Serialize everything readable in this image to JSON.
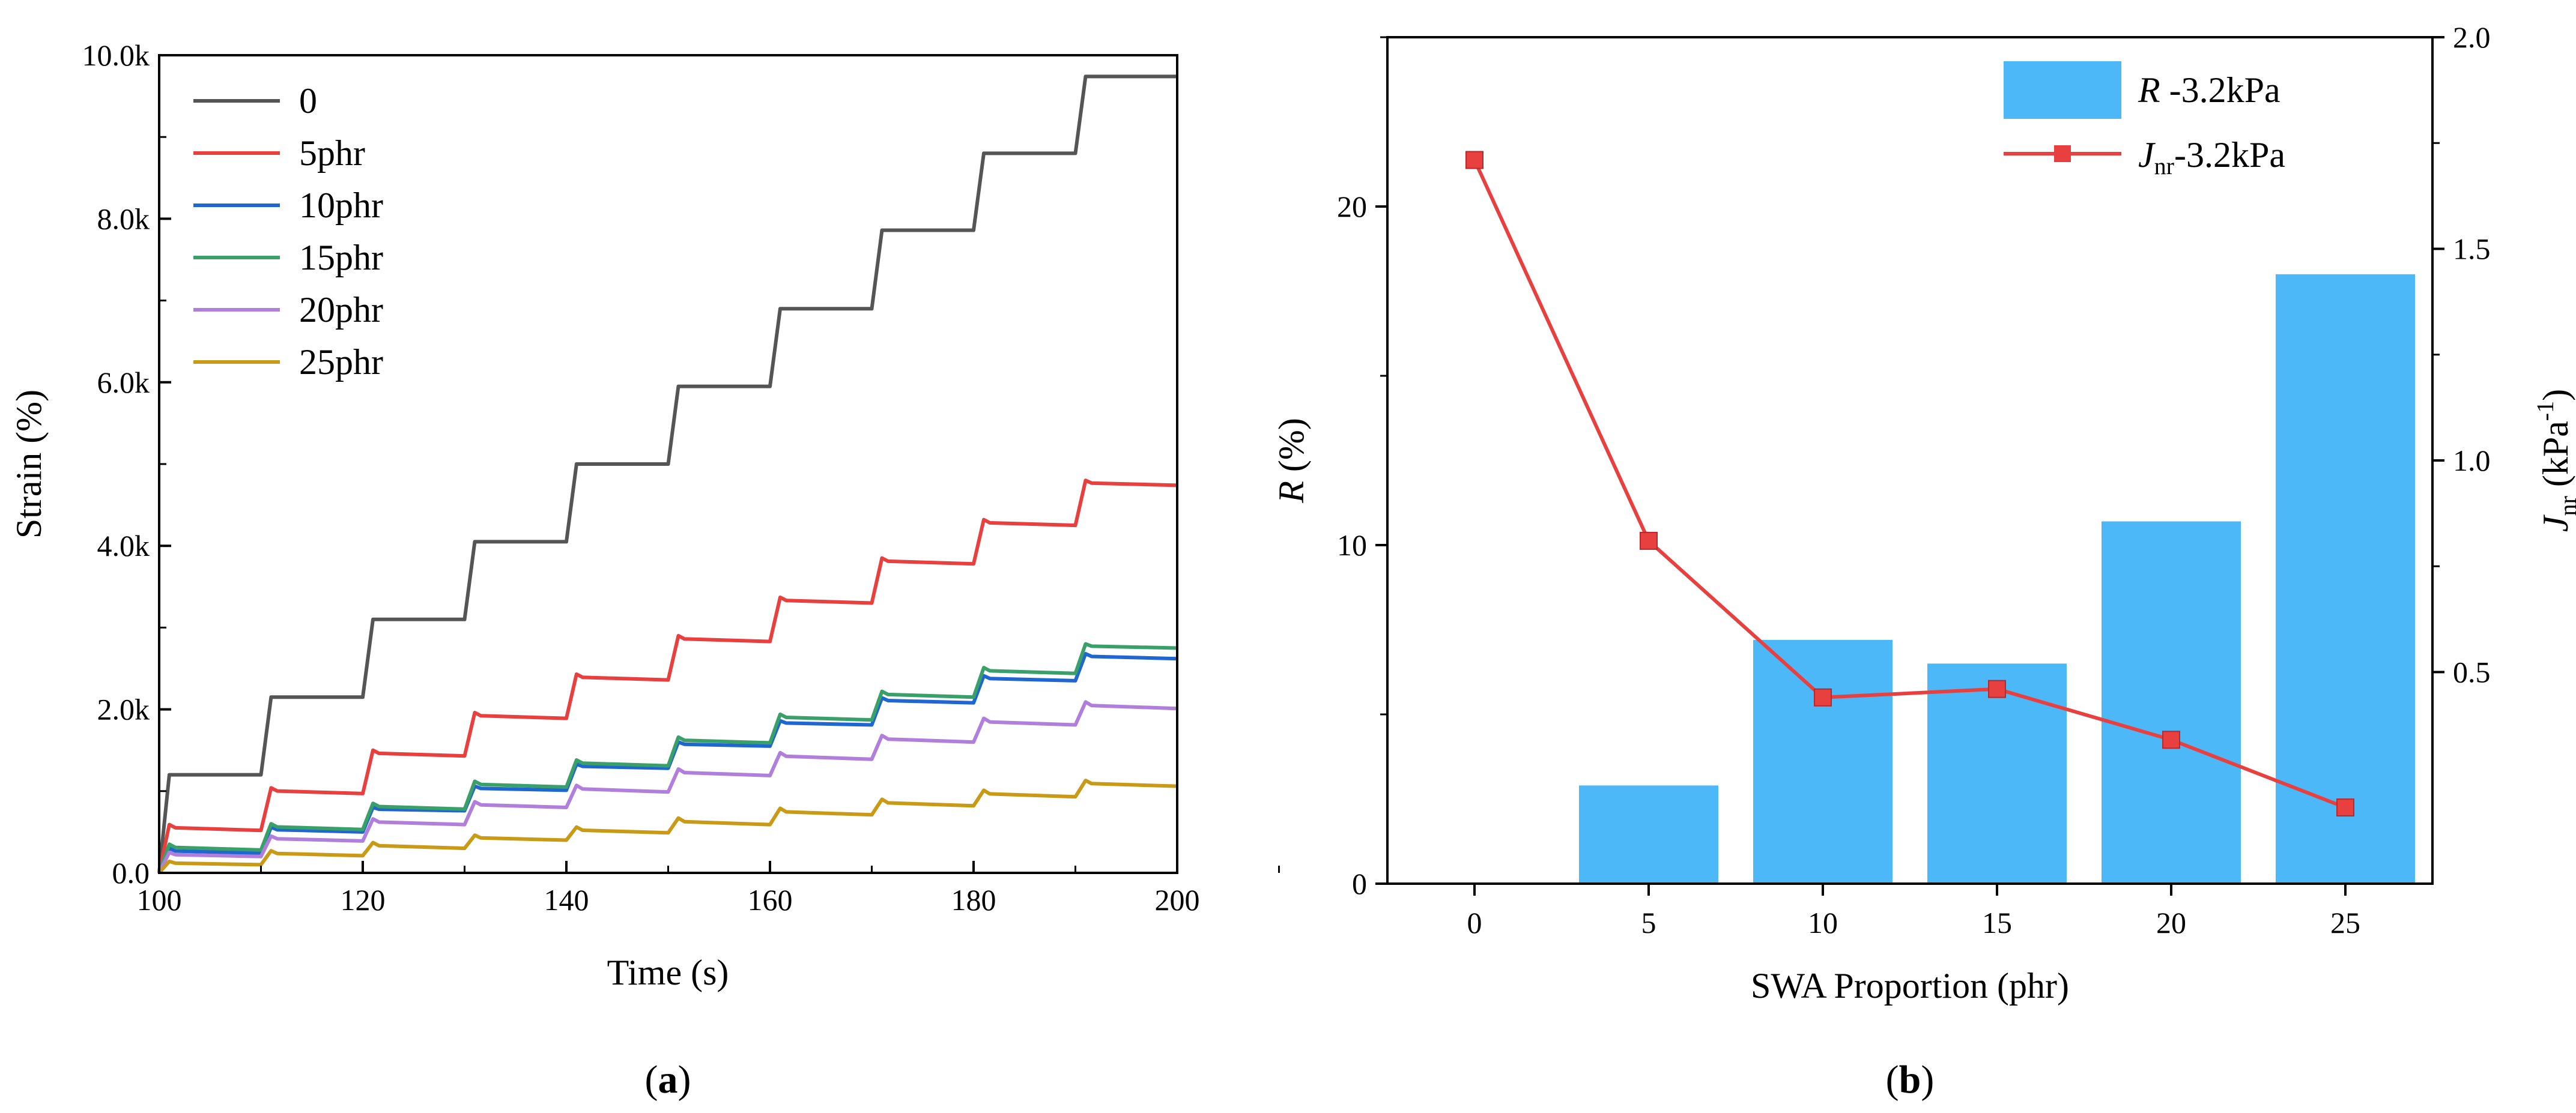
{
  "chart_data": [
    {
      "panel": "a",
      "type": "line",
      "caption": {
        "open": "(",
        "letter": "a",
        "close": ")"
      },
      "xlabel": "Time (s)",
      "ylabel": "Strain (%)",
      "xlim": [
        100,
        200
      ],
      "ylim": [
        0,
        10000
      ],
      "xticks": [
        100,
        120,
        140,
        160,
        180,
        200
      ],
      "yticks": [
        0,
        2000,
        4000,
        6000,
        8000,
        10000
      ],
      "ytick_labels": [
        "0.0",
        "2.0k",
        "4.0k",
        "6.0k",
        "8.0k",
        "10.0k"
      ],
      "legend_position": "top-left",
      "cycle": {
        "start": 100,
        "period": 10,
        "load_seconds": 1,
        "count": 10
      },
      "series": [
        {
          "name": "0",
          "color": "#555555",
          "loaded": [
            1200,
            2150,
            3100,
            4050,
            5000,
            5950,
            6900,
            7860,
            8800,
            9740
          ],
          "end_of_cycle": [
            1200,
            2150,
            3100,
            4050,
            5000,
            5950,
            6900,
            7860,
            8800,
            9740
          ]
        },
        {
          "name": "5phr",
          "color": "#e8403f",
          "loaded": [
            590,
            1040,
            1500,
            1960,
            2430,
            2900,
            3370,
            3850,
            4320,
            4800
          ],
          "end_of_cycle": [
            520,
            970,
            1430,
            1890,
            2360,
            2830,
            3300,
            3780,
            4250,
            4740
          ]
        },
        {
          "name": "10phr",
          "color": "#1f66d1",
          "loaded": [
            300,
            560,
            800,
            1060,
            1330,
            1600,
            1860,
            2140,
            2410,
            2680
          ],
          "end_of_cycle": [
            240,
            500,
            760,
            1010,
            1280,
            1550,
            1810,
            2080,
            2350,
            2620
          ]
        },
        {
          "name": "15phr",
          "color": "#3aa06a",
          "loaded": [
            350,
            600,
            850,
            1120,
            1380,
            1660,
            1940,
            2220,
            2510,
            2800
          ],
          "end_of_cycle": [
            280,
            530,
            780,
            1050,
            1310,
            1590,
            1870,
            2150,
            2440,
            2750
          ]
        },
        {
          "name": "20phr",
          "color": "#b07fdc",
          "loaded": [
            250,
            450,
            660,
            870,
            1070,
            1270,
            1470,
            1680,
            1890,
            2090
          ],
          "end_of_cycle": [
            200,
            390,
            590,
            800,
            990,
            1190,
            1390,
            1600,
            1810,
            2010
          ]
        },
        {
          "name": "25phr",
          "color": "#c89a15",
          "loaded": [
            140,
            270,
            370,
            460,
            560,
            670,
            790,
            900,
            1010,
            1130
          ],
          "end_of_cycle": [
            100,
            210,
            300,
            400,
            490,
            590,
            710,
            820,
            930,
            1060
          ]
        }
      ]
    },
    {
      "panel": "b",
      "type": "bar+line",
      "caption": {
        "open": "(",
        "letter": "b",
        "close": ")"
      },
      "xlabel": "SWA Proportion (phr)",
      "categories": [
        "0",
        "5",
        "10",
        "15",
        "20",
        "25"
      ],
      "bars": {
        "name_italic": "R",
        "name_rest": " -3.2kPa",
        "color": "#4db8f7",
        "values": [
          0,
          2.9,
          7.2,
          6.5,
          10.7,
          18.0
        ]
      },
      "line": {
        "name_italic": "J",
        "name_sub": "nr",
        "name_rest": "-3.2kPa",
        "color": "#e8403f",
        "values": [
          1.71,
          0.81,
          0.44,
          0.46,
          0.34,
          0.18
        ]
      },
      "ylabel_left": {
        "italic": "R",
        "rest": " (%)"
      },
      "ylabel_right": {
        "main": "J",
        "sub": "nr",
        "unit": " (kPa",
        "sup": "-1",
        "close": ")"
      },
      "ylim_left": [
        0,
        25
      ],
      "yticks_left": [
        0,
        10,
        20
      ],
      "ytick_labels_left": [
        "0",
        "10",
        "20"
      ],
      "ylim_right": [
        0.0,
        2.0
      ],
      "yticks_right": [
        0.5,
        1.0,
        1.5,
        2.0
      ],
      "ytick_labels_right": [
        "0.5",
        "1.0",
        "1.5",
        "2.0"
      ],
      "legend_position": "top-right"
    }
  ]
}
